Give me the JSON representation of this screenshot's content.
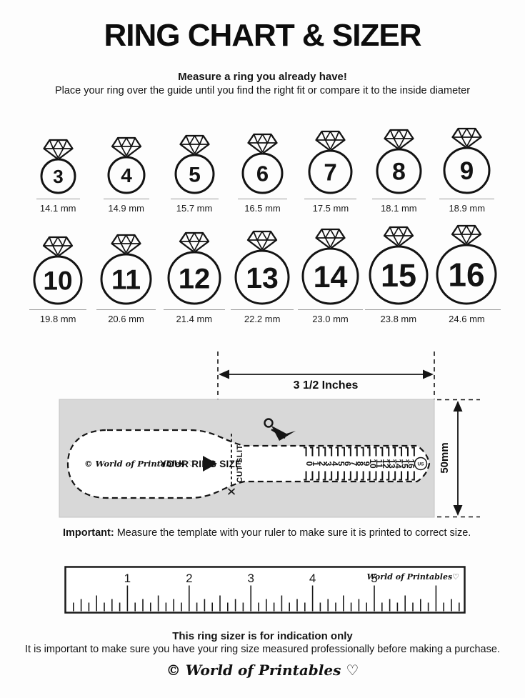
{
  "page": {
    "title": "RING CHART & SIZER",
    "intro_bold": "Measure a ring you already have!",
    "intro_text": "Place your ring over the guide until you find the right fit or compare it to the inside diameter"
  },
  "ring_chart": {
    "rows": [
      [
        {
          "size": "3",
          "diameter": "14.1 mm"
        },
        {
          "size": "4",
          "diameter": "14.9 mm"
        },
        {
          "size": "5",
          "diameter": "15.7 mm"
        },
        {
          "size": "6",
          "diameter": "16.5 mm"
        },
        {
          "size": "7",
          "diameter": "17.5 mm"
        },
        {
          "size": "8",
          "diameter": "18.1 mm"
        },
        {
          "size": "9",
          "diameter": "18.9 mm"
        }
      ],
      [
        {
          "size": "10",
          "diameter": "19.8 mm"
        },
        {
          "size": "11",
          "diameter": "20.6 mm"
        },
        {
          "size": "12",
          "diameter": "21.4 mm"
        },
        {
          "size": "13",
          "diameter": "22.2 mm"
        },
        {
          "size": "14",
          "diameter": "23.0 mm"
        },
        {
          "size": "15",
          "diameter": "23.8 mm"
        },
        {
          "size": "16",
          "diameter": "24.6 mm"
        }
      ]
    ]
  },
  "sizer": {
    "width_label": "3 1/2 Inches",
    "height_label": "50mm",
    "brand": "© World of Printables ♡",
    "your_ring_size_label": "YOUR RING SIZE",
    "cut_slit_label": "CUT SLIT",
    "scale_numbers": [
      "0",
      "1",
      "2",
      "3",
      "4",
      "5",
      "6",
      "7",
      "8",
      "9",
      "10",
      "11",
      "12",
      "13",
      "14",
      "15",
      "16"
    ],
    "unit_label": "US"
  },
  "important": {
    "bold": "Important:",
    "text": " Measure the template with your ruler to make sure it is printed to correct size."
  },
  "ruler": {
    "inch_numbers": [
      "1",
      "2",
      "3",
      "4",
      "5"
    ],
    "brand": "World of Printables♡"
  },
  "footer": {
    "bold_line": "This ring sizer is for indication only",
    "text_line": "It is important to make sure you have your ring size measured professionally before making a purchase.",
    "brand": "© World of Printables ♡"
  },
  "colors": {
    "box_gray": "#d8d8d8",
    "ink": "#151515",
    "underline_gray": "#9a9a9a"
  }
}
